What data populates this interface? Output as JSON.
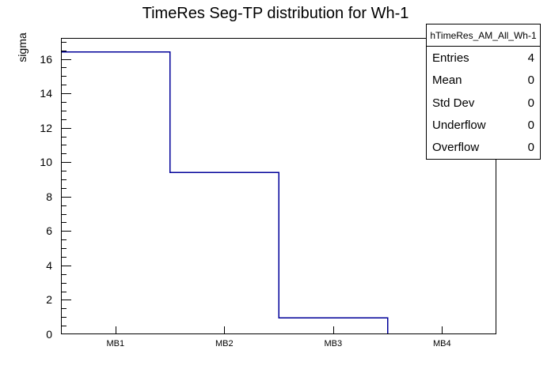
{
  "chart": {
    "title": "TimeRes Seg-TP distribution for Wh-1",
    "ylabel": "sigma"
  },
  "chart_data": {
    "type": "bar",
    "subtype": "root-step-histogram",
    "title": "TimeRes Seg-TP distribution for Wh-1",
    "xlabel": "",
    "ylabel": "sigma",
    "categories": [
      "MB1",
      "MB2",
      "MB3",
      "MB4"
    ],
    "values": [
      16.4,
      9.4,
      0.95,
      0
    ],
    "ylim": [
      0,
      17.22
    ],
    "y_major_step": 2,
    "y_minor_step": 0.5,
    "grid": false,
    "legend": false,
    "line_color": "#000099",
    "axis_color": "#000000",
    "background_color": "#ffffff"
  },
  "stats": {
    "title": "hTimeRes_AM_All_Wh-1",
    "rows": [
      {
        "label": "Entries",
        "value": "4"
      },
      {
        "label": "Mean",
        "value": "0"
      },
      {
        "label": "Std Dev",
        "value": "0"
      },
      {
        "label": "Underflow",
        "value": "0"
      },
      {
        "label": "Overflow",
        "value": "0"
      }
    ]
  }
}
